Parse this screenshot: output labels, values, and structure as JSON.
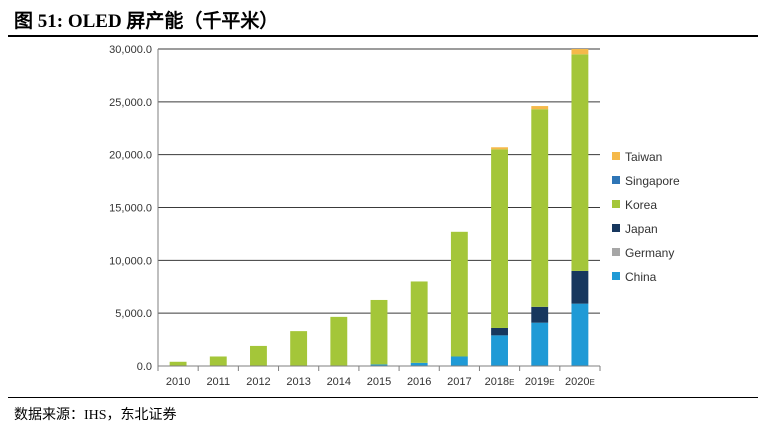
{
  "title": "图 51: OLED 屏产能（千平米）",
  "source": "数据来源：IHS，东北证券",
  "chart_data": {
    "type": "bar",
    "stacked": true,
    "categories": [
      "2010",
      "2011",
      "2012",
      "2013",
      "2014",
      "2015",
      "2016",
      "2017",
      "2018E",
      "2019E",
      "2020E"
    ],
    "ylim": [
      0,
      30000
    ],
    "yticks": [
      "0.0",
      "5,000.0",
      "10,000.0",
      "15,000.0",
      "20,000.0",
      "25,000.0",
      "30,000.0"
    ],
    "grid": "horizontal",
    "legend_position": "right",
    "series": [
      {
        "name": "China",
        "color": "#1f9ad6",
        "values": [
          0,
          0,
          0,
          0,
          50,
          150,
          300,
          900,
          2900,
          4100,
          5900
        ]
      },
      {
        "name": "Germany",
        "color": "#a6a6a6",
        "values": [
          0,
          0,
          0,
          0,
          0,
          0,
          0,
          0,
          0,
          0,
          0
        ]
      },
      {
        "name": "Japan",
        "color": "#17375e",
        "values": [
          0,
          0,
          0,
          0,
          0,
          0,
          0,
          0,
          700,
          1500,
          3100
        ]
      },
      {
        "name": "Korea",
        "color": "#a4c639",
        "values": [
          400,
          900,
          1900,
          3300,
          4600,
          6100,
          7700,
          11800,
          16900,
          18700,
          20500
        ]
      },
      {
        "name": "Singapore",
        "color": "#2e75b6",
        "values": [
          0,
          0,
          0,
          0,
          0,
          0,
          0,
          0,
          0,
          0,
          0
        ]
      },
      {
        "name": "Taiwan",
        "color": "#f5b94a",
        "values": [
          0,
          0,
          0,
          0,
          0,
          0,
          0,
          0,
          200,
          300,
          500
        ]
      }
    ]
  }
}
